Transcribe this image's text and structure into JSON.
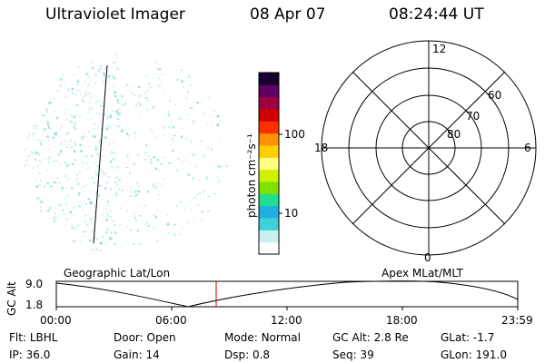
{
  "header": {
    "instrument": "Ultraviolet Imager",
    "date": "08 Apr 07",
    "time": "08:24:44 UT"
  },
  "colorbar": {
    "unit_label": "photon cm⁻²s⁻¹",
    "ticks": [
      "100",
      "10"
    ],
    "colors": [
      "#ffffff",
      "#c8f0f0",
      "#40d0d8",
      "#20b0e0",
      "#20e090",
      "#80e000",
      "#d0f000",
      "#ffff80",
      "#ffd000",
      "#ff9000",
      "#ff3000",
      "#d00000",
      "#a00040",
      "#600060",
      "#1a0030"
    ]
  },
  "polar_grid": {
    "mlt_labels": {
      "top": "12",
      "right": "6",
      "bottom": "0",
      "left": "18"
    },
    "lat_labels": [
      "60",
      "70",
      "80"
    ]
  },
  "timeline": {
    "left_title": "Geographic Lat/Lon",
    "right_title": "Apex MLat/MLT",
    "axis_title": "GC Alt",
    "y_ticks": [
      "9.0",
      "1.8"
    ],
    "x_ticks": [
      "00:00",
      "06:00",
      "12:00",
      "18:00",
      "23:59"
    ],
    "marker_color": "#c00000"
  },
  "status": {
    "row1": [
      {
        "key": "Flt:",
        "value": "LBHL"
      },
      {
        "key": "Door:",
        "value": "Open"
      },
      {
        "key": "Mode:",
        "value": "Normal"
      },
      {
        "key": "GC Alt:",
        "value": "2.8 Re"
      },
      {
        "key": "GLat:",
        "value": "-1.7"
      }
    ],
    "row2": [
      {
        "key": "IP:",
        "value": "36.0"
      },
      {
        "key": "Gain:",
        "value": "14"
      },
      {
        "key": "Dsp:",
        "value": "0.8"
      },
      {
        "key": "Seq:",
        "value": "39"
      },
      {
        "key": "GLon:",
        "value": "191.0"
      }
    ]
  }
}
